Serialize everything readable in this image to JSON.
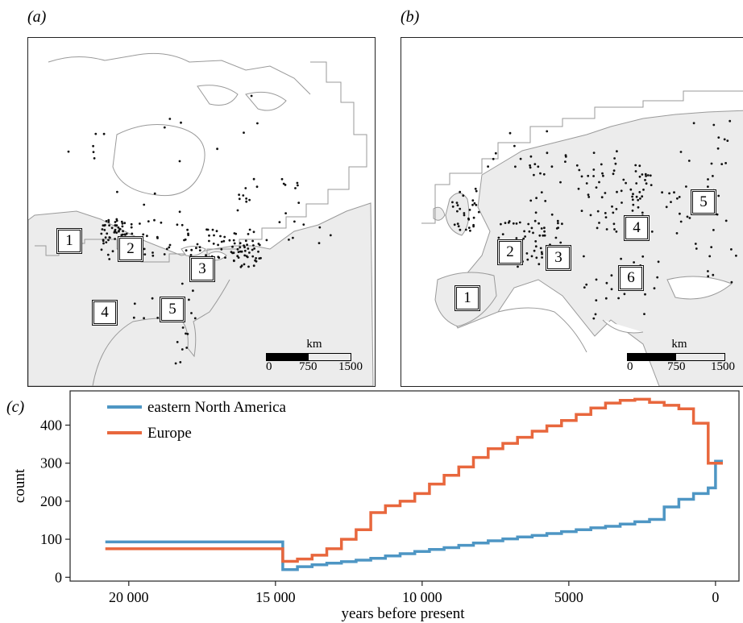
{
  "panels": {
    "a": {
      "label": "(a)",
      "sites": [
        "1",
        "2",
        "3",
        "4",
        "5"
      ],
      "scale": {
        "unit": "km",
        "ticks": [
          "0",
          "750",
          "1500"
        ]
      }
    },
    "b": {
      "label": "(b)",
      "sites": [
        "1",
        "2",
        "3",
        "4",
        "5",
        "6"
      ],
      "scale": {
        "unit": "km",
        "ticks": [
          "0",
          "750",
          "1500"
        ]
      }
    },
    "c": {
      "label": "(c)"
    }
  },
  "colors": {
    "eastern_north_america": "#4e96c4",
    "europe": "#e8673d",
    "map_land": "#ececec",
    "map_border": "#9a9a9a"
  },
  "chart_data": {
    "type": "line",
    "xlabel": "years before present",
    "ylabel": "count",
    "x_reversed": true,
    "xlim": [
      22000,
      -800
    ],
    "ylim": [
      -10,
      490
    ],
    "xticks": [
      20000,
      15000,
      10000,
      5000,
      0
    ],
    "xtick_labels": [
      "20 000",
      "15 000",
      "10 000",
      "5000",
      "0"
    ],
    "yticks": [
      0,
      100,
      200,
      300,
      400
    ],
    "ytick_labels": [
      "0",
      "100",
      "200",
      "300",
      "400"
    ],
    "legend_position": "top-left",
    "step": true,
    "series": [
      {
        "name": "eastern North America",
        "x": [
          20800,
          14750,
          14250,
          13750,
          13250,
          12750,
          12250,
          11750,
          11250,
          10750,
          10250,
          9750,
          9250,
          8750,
          8250,
          7750,
          7250,
          6750,
          6250,
          5750,
          5250,
          4750,
          4250,
          3750,
          3250,
          2750,
          2250,
          1750,
          1250,
          750,
          250,
          0
        ],
        "y": [
          93,
          20,
          28,
          33,
          37,
          41,
          45,
          50,
          56,
          62,
          68,
          73,
          78,
          84,
          90,
          96,
          101,
          106,
          110,
          115,
          120,
          125,
          130,
          134,
          140,
          146,
          152,
          185,
          205,
          220,
          235,
          305
        ]
      },
      {
        "name": "Europe",
        "x": [
          20800,
          14750,
          14250,
          13750,
          13250,
          12750,
          12250,
          11750,
          11250,
          10750,
          10250,
          9750,
          9250,
          8750,
          8250,
          7750,
          7250,
          6750,
          6250,
          5750,
          5250,
          4750,
          4250,
          3750,
          3250,
          2750,
          2250,
          1750,
          1250,
          750,
          250,
          0
        ],
        "y": [
          75,
          42,
          48,
          58,
          75,
          100,
          125,
          170,
          188,
          200,
          220,
          245,
          268,
          290,
          315,
          338,
          352,
          368,
          384,
          398,
          412,
          428,
          445,
          458,
          465,
          468,
          460,
          452,
          443,
          405,
          300,
          300
        ]
      }
    ]
  }
}
